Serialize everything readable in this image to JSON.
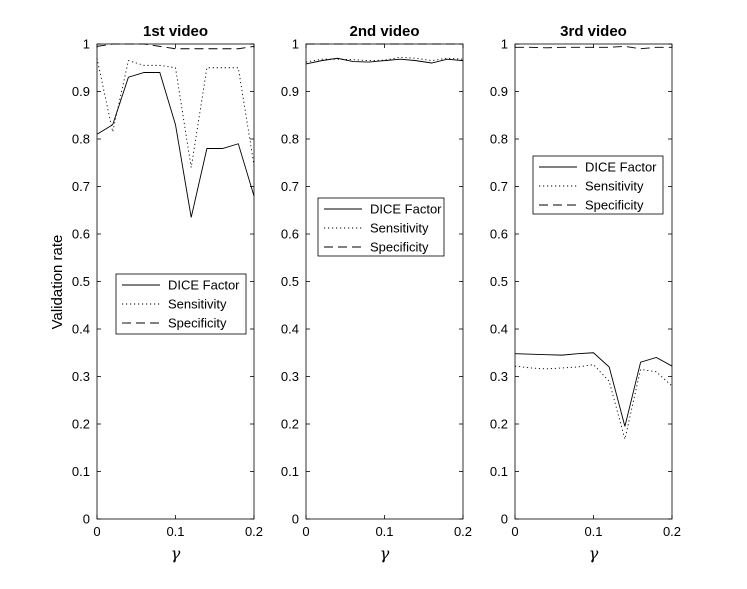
{
  "figure": {
    "ylabel": "Validation rate"
  },
  "chart_data": [
    {
      "type": "line",
      "title": "1st video",
      "xlabel": "γ",
      "ylabel": "Validation rate",
      "xlim": [
        0,
        0.2
      ],
      "ylim": [
        0,
        1
      ],
      "xticks": [
        "0",
        "0.1",
        "0.2"
      ],
      "yticks": [
        "0",
        "0.1",
        "0.2",
        "0.3",
        "0.4",
        "0.5",
        "0.6",
        "0.7",
        "0.8",
        "0.9",
        "1"
      ],
      "grid": false,
      "legend_position": "lower-middle",
      "x": [
        0,
        0.02,
        0.04,
        0.06,
        0.08,
        0.1,
        0.12,
        0.14,
        0.16,
        0.18,
        0.2
      ],
      "series": [
        {
          "name": "DICE Factor",
          "style": "solid",
          "values": [
            0.81,
            0.83,
            0.93,
            0.94,
            0.94,
            0.83,
            0.635,
            0.78,
            0.78,
            0.79,
            0.68
          ]
        },
        {
          "name": "Sensitivity",
          "style": "dotted",
          "values": [
            0.97,
            0.815,
            0.965,
            0.955,
            0.955,
            0.95,
            0.74,
            0.95,
            0.95,
            0.95,
            0.745
          ]
        },
        {
          "name": "Specificity",
          "style": "dashed",
          "values": [
            0.995,
            1.0,
            1.0,
            1.0,
            0.995,
            0.99,
            0.99,
            0.99,
            0.99,
            0.99,
            0.995
          ]
        }
      ]
    },
    {
      "type": "line",
      "title": "2nd video",
      "xlabel": "γ",
      "xlim": [
        0,
        0.2
      ],
      "ylim": [
        0,
        1
      ],
      "xticks": [
        "0",
        "0.1",
        "0.2"
      ],
      "yticks": [
        "0",
        "0.1",
        "0.2",
        "0.3",
        "0.4",
        "0.5",
        "0.6",
        "0.7",
        "0.8",
        "0.9",
        "1"
      ],
      "grid": false,
      "legend_position": "middle-right",
      "x": [
        0,
        0.02,
        0.04,
        0.06,
        0.08,
        0.1,
        0.12,
        0.14,
        0.16,
        0.18,
        0.2
      ],
      "series": [
        {
          "name": "DICE Factor",
          "style": "solid",
          "values": [
            0.958,
            0.965,
            0.97,
            0.963,
            0.962,
            0.965,
            0.968,
            0.965,
            0.96,
            0.968,
            0.965
          ]
        },
        {
          "name": "Sensitivity",
          "style": "dotted",
          "values": [
            0.962,
            0.968,
            0.968,
            0.967,
            0.965,
            0.966,
            0.972,
            0.97,
            0.965,
            0.97,
            0.968
          ]
        },
        {
          "name": "Specificity",
          "style": "dashed",
          "values": [
            1.0,
            1.0,
            1.0,
            1.0,
            1.0,
            1.0,
            1.0,
            1.0,
            1.0,
            1.0,
            1.0
          ]
        }
      ]
    },
    {
      "type": "line",
      "title": "3rd video",
      "xlabel": "γ",
      "xlim": [
        0,
        0.2
      ],
      "ylim": [
        0,
        1
      ],
      "xticks": [
        "0",
        "0.1",
        "0.2"
      ],
      "yticks": [
        "0",
        "0.1",
        "0.2",
        "0.3",
        "0.4",
        "0.5",
        "0.6",
        "0.7",
        "0.8",
        "0.9",
        "1"
      ],
      "grid": false,
      "legend_position": "upper-middle",
      "x": [
        0,
        0.02,
        0.04,
        0.06,
        0.08,
        0.1,
        0.12,
        0.14,
        0.16,
        0.18,
        0.2
      ],
      "series": [
        {
          "name": "DICE Factor",
          "style": "solid",
          "values": [
            0.348,
            0.347,
            0.346,
            0.345,
            0.348,
            0.35,
            0.32,
            0.195,
            0.33,
            0.34,
            0.322
          ]
        },
        {
          "name": "Sensitivity",
          "style": "dotted",
          "values": [
            0.322,
            0.318,
            0.316,
            0.318,
            0.32,
            0.325,
            0.29,
            0.168,
            0.315,
            0.31,
            0.28
          ]
        },
        {
          "name": "Specificity",
          "style": "dashed",
          "values": [
            0.993,
            0.993,
            0.992,
            0.993,
            0.993,
            0.993,
            0.993,
            0.995,
            0.99,
            0.993,
            0.993
          ]
        }
      ]
    }
  ]
}
